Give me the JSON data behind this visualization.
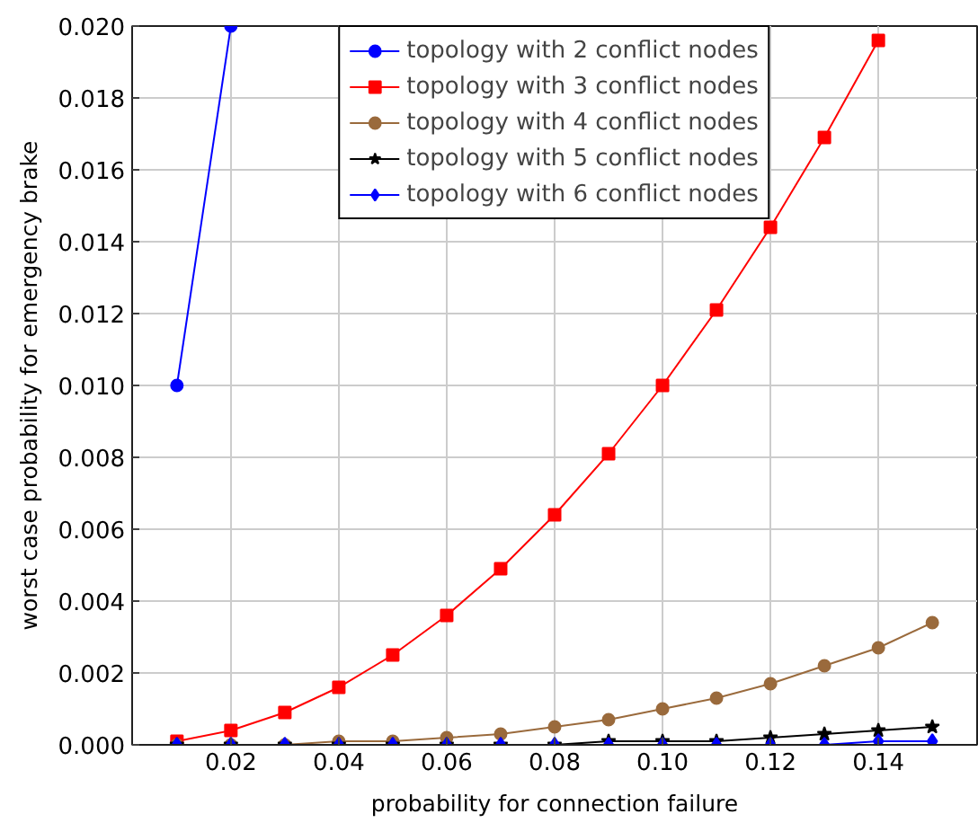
{
  "chart_data": {
    "type": "line",
    "xlabel": "probability for connection failure",
    "ylabel": "worst case probability for emergency brake",
    "x": [
      0.01,
      0.02,
      0.03,
      0.04,
      0.05,
      0.06,
      0.07,
      0.08,
      0.09,
      0.1,
      0.11,
      0.12,
      0.13,
      0.14,
      0.15
    ],
    "series": [
      {
        "name": "topology with 2 conflict nodes",
        "color": "#0000ff",
        "marker": "circle",
        "x": [
          0.01,
          0.02
        ],
        "values": [
          0.01,
          0.02
        ]
      },
      {
        "name": "topology with 3 conflict nodes",
        "color": "#ff0000",
        "marker": "square",
        "values": [
          0.0001,
          0.0004,
          0.0009,
          0.0016,
          0.0025,
          0.0036,
          0.0049,
          0.0064,
          0.0081,
          0.01,
          0.0121,
          0.0144,
          0.0169,
          0.0196,
          null
        ]
      },
      {
        "name": "topology with 4 conflict nodes",
        "color": "#9a6a3c",
        "marker": "circle",
        "values": [
          0.0,
          0.0,
          0.0,
          0.0001,
          0.0001,
          0.0002,
          0.0003,
          0.0005,
          0.0007,
          0.001,
          0.0013,
          0.0017,
          0.0022,
          0.0027,
          0.0034
        ]
      },
      {
        "name": "topology with 5 conflict nodes",
        "color": "#000000",
        "marker": "star",
        "values": [
          0.0,
          0.0,
          0.0,
          0.0,
          0.0,
          0.0,
          0.0,
          0.0,
          0.0001,
          0.0001,
          0.0001,
          0.0002,
          0.0003,
          0.0004,
          0.0005
        ]
      },
      {
        "name": "topology with 6 conflict nodes",
        "color": "#0000ff",
        "marker": "diamond",
        "values": [
          0.0,
          0.0,
          0.0,
          0.0,
          0.0,
          0.0,
          0.0,
          0.0,
          0.0,
          0.0,
          0.0,
          0.0,
          0.0,
          0.0001,
          0.0001
        ]
      }
    ],
    "xlim": [
      0.0017,
      0.1583
    ],
    "ylim": [
      0.0,
      0.02
    ],
    "xticks": [
      0.02,
      0.04,
      0.06,
      0.08,
      {
        "value": 0.1,
        "label": "0.10"
      },
      0.12,
      0.14
    ],
    "yticks": [
      {
        "value": 0.0,
        "label": "0.000"
      },
      {
        "value": 0.002,
        "label": "0.002"
      },
      {
        "value": 0.004,
        "label": "0.004"
      },
      {
        "value": 0.006,
        "label": "0.006"
      },
      {
        "value": 0.008,
        "label": "0.008"
      },
      {
        "value": 0.01,
        "label": "0.010"
      },
      {
        "value": 0.012,
        "label": "0.012"
      },
      {
        "value": 0.014,
        "label": "0.014"
      },
      {
        "value": 0.016,
        "label": "0.016"
      },
      {
        "value": 0.018,
        "label": "0.018"
      },
      {
        "value": 0.02,
        "label": "0.020"
      }
    ],
    "grid": true,
    "legend": "top"
  }
}
